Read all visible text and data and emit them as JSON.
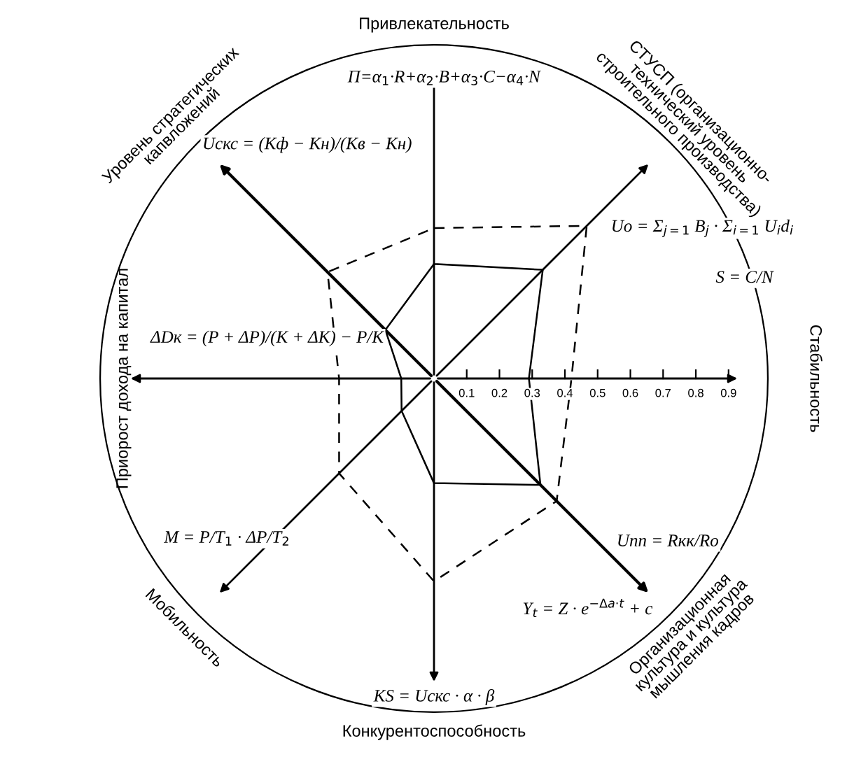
{
  "chart_data": {
    "type": "radar",
    "categories": [
      "Привлекательность",
      "СТУСП (организационно-\nтехнический уровень\nстроительного производства)",
      "Стабильность",
      "Организационная\nкультура и культура\nмышления кадров",
      "Конкурентоспособность",
      "Мобильность",
      "Приорост дохода на капитал",
      "Уровень стратегических\nкапвложений"
    ],
    "series": [
      {
        "color": "#000000",
        "line_style": "solid",
        "values": [
          0.35,
          0.47,
          0.29,
          0.46,
          0.32,
          0.14,
          0.1,
          0.21
        ]
      },
      {
        "color": "#000000",
        "line_style": "dashed",
        "values": [
          0.46,
          0.66,
          0.42,
          0.53,
          0.62,
          0.41,
          0.29,
          0.46
        ]
      }
    ],
    "ylim": [
      0,
      1.02
    ],
    "yticks": [
      0.1,
      0.2,
      0.3,
      0.4,
      0.5,
      0.6,
      0.7,
      0.8,
      0.9
    ],
    "annotations": [
      "П=α$_{1}$·R+α$_{2}$·B+α$_{3}$·C−α$_{4}$·N",
      "Uo = Σ$_{j=1}$ B$_{j}$ · Σ$_{i=1}$ U$_{i}$d$_{i}$",
      "S = C/N",
      "Uпп = Rкк/Ro",
      "KS = Uскс · α · β",
      "M = P/T$_{1}$ · ΔP/T$_{2}$",
      "ΔDк = (P + ΔP)/(K + ΔK) − P/K",
      "Uскс = (Kф − Kн)/(Kв − Kн)",
      "Y$_{t}$ = Z · e$^{−Δa·t}$ + c"
    ]
  }
}
